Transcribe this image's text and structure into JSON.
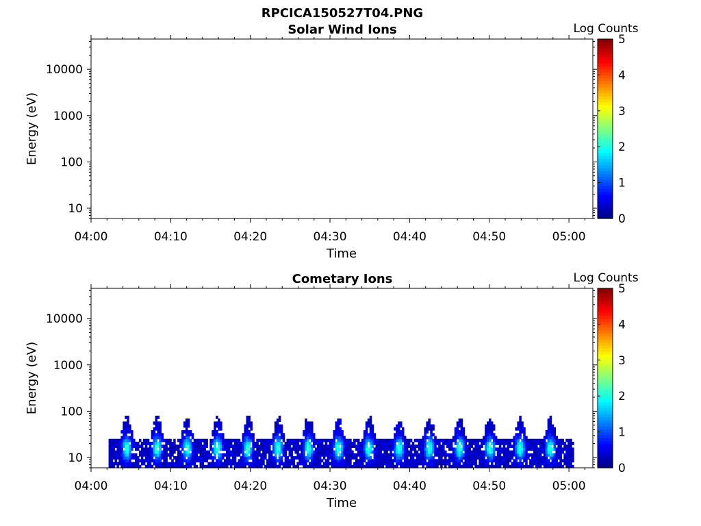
{
  "figure_title": "RPCICA150527T04.PNG",
  "chart_data": [
    {
      "type": "heatmap",
      "title": "Solar Wind Ions",
      "xlabel": "Time",
      "ylabel": "Energy (eV)",
      "x_ticks": [
        "04:00",
        "04:10",
        "04:20",
        "04:30",
        "04:40",
        "04:50",
        "05:00"
      ],
      "x_range_minutes": [
        0,
        63
      ],
      "y_scale": "log",
      "y_range": [
        6,
        45000
      ],
      "y_ticks": [
        10,
        100,
        1000,
        10000
      ],
      "colorbar": {
        "label": "Log Counts",
        "range": [
          0,
          5
        ],
        "ticks": [
          0,
          1,
          2,
          3,
          4,
          5
        ],
        "colormap": "jet"
      },
      "data": []
    },
    {
      "type": "heatmap",
      "title": "Cometary Ions",
      "xlabel": "Time",
      "ylabel": "Energy (eV)",
      "x_ticks": [
        "04:00",
        "04:10",
        "04:20",
        "04:30",
        "04:40",
        "04:50",
        "05:00"
      ],
      "x_range_minutes": [
        0,
        63
      ],
      "y_scale": "log",
      "y_range": [
        6,
        45000
      ],
      "y_ticks": [
        10,
        100,
        1000,
        10000
      ],
      "colorbar": {
        "label": "Log Counts",
        "range": [
          0,
          5
        ],
        "ticks": [
          0,
          1,
          2,
          3,
          4,
          5
        ],
        "colormap": "jet"
      },
      "data_time_range_minutes": [
        2.2,
        60.6
      ],
      "data_energy_range_ev": [
        6,
        80
      ],
      "peak_log_counts": 2.2,
      "note_cells": "Signal present continuously between ~6 and ~80 eV, with intensity bursts roughly every 2 minutes"
    }
  ]
}
